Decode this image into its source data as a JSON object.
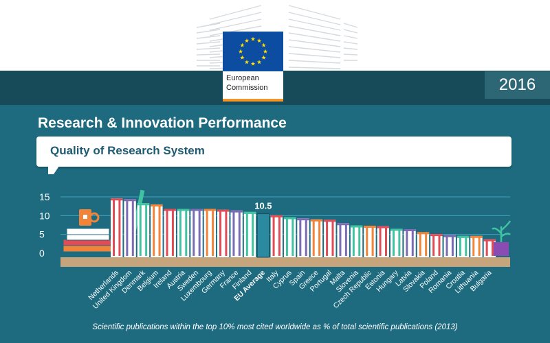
{
  "header": {
    "year": "2016",
    "logo_line1": "European",
    "logo_line2": "Commission"
  },
  "title": "Research & Innovation Performance",
  "subtitle": "Quality of Research System",
  "caption": "Scientific publications within the top 10% most cited worldwide as % of total scientific publications (2013)",
  "colors": {
    "background": "#1e6b80",
    "band": "#184b59",
    "highlight": "#2a8aa0",
    "shelf": "#c7a57c",
    "gridline": "#3fa3bd"
  },
  "chart_data": {
    "type": "bar",
    "title": "Quality of Research System",
    "xlabel": "",
    "ylabel": "",
    "ylim": [
      0,
      15
    ],
    "yticks": [
      0,
      5,
      10,
      15
    ],
    "highlight_label": "10.5",
    "highlight_category": "EU Average",
    "categories": [
      "Netherlands",
      "United Kingdom",
      "Denmark",
      "Belgium",
      "Ireland",
      "Austria",
      "Sweden",
      "Luxembourg",
      "Germany",
      "France",
      "Finland",
      "EU Average",
      "Italy",
      "Cyprus",
      "Spain",
      "Greece",
      "Portugal",
      "Malta",
      "Slovenia",
      "Czech Republic",
      "Estonia",
      "Hungary",
      "Latvia",
      "Slovakia",
      "Poland",
      "Romania",
      "Croatia",
      "Lithuania",
      "Bulgaria"
    ],
    "values": [
      14.6,
      14.4,
      13.3,
      13.0,
      11.8,
      11.8,
      11.8,
      11.8,
      11.6,
      11.4,
      11.0,
      10.5,
      10.1,
      9.6,
      9.3,
      9.0,
      8.9,
      8.0,
      7.4,
      7.3,
      7.2,
      6.5,
      6.4,
      5.6,
      5.1,
      4.8,
      4.6,
      4.6,
      3.7
    ]
  }
}
